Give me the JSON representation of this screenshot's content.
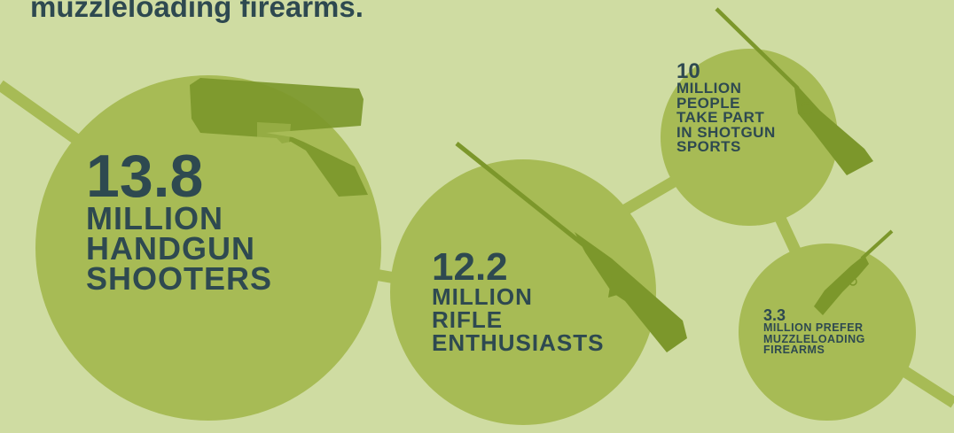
{
  "title": "muzzleloading firearms.",
  "colors": {
    "background": "#cfdca2",
    "bubble": "#a7bb55",
    "connector": "#a7bb55",
    "gun": "#7c972b",
    "text": "#2e4950"
  },
  "stats": [
    {
      "number": "13.8",
      "lines": [
        "MILLION",
        "HANDGUN",
        "SHOOTERS"
      ],
      "icon": "handgun-icon"
    },
    {
      "number": "12.2",
      "lines": [
        "MILLION",
        "RIFLE",
        "ENTHUSIASTS"
      ],
      "icon": "rifle-icon"
    },
    {
      "number": "10",
      "lines": [
        "MILLION",
        "PEOPLE",
        "TAKE PART",
        "IN SHOTGUN",
        "SPORTS"
      ],
      "icon": "shotgun-icon"
    },
    {
      "number": "3.3",
      "lines": [
        "MILLION PREFER",
        "MUZZLELOADING",
        "FIREARMS"
      ],
      "icon": "muzzleloader-icon"
    }
  ]
}
